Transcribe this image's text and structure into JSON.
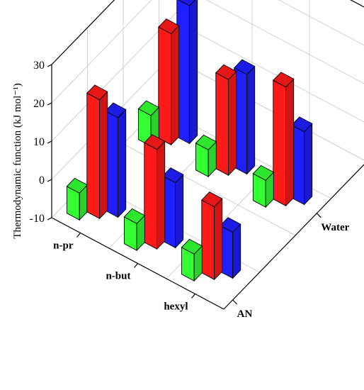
{
  "chart_data": {
    "type": "bar3d",
    "ylabel": "Thermodynamic function (kJ mol⁻¹)",
    "ylim": [
      -10,
      30
    ],
    "y_ticks": [
      -10,
      0,
      10,
      20,
      30
    ],
    "x_categories": [
      "n-pr",
      "n-but",
      "hexyl"
    ],
    "z_categories": [
      "AN",
      "Water"
    ],
    "grid": true,
    "series": [
      {
        "color": "#1f1fff",
        "values": {
          "AN": [
            16,
            7,
            2
          ],
          "Water": [
            26,
            16,
            9
          ]
        }
      },
      {
        "color": "#ff1a1a",
        "values": {
          "AN": [
            21,
            16,
            9
          ],
          "Water": [
            19,
            15,
            21
          ]
        }
      },
      {
        "color": "#33ff33",
        "values": {
          "AN": [
            -3,
            -3,
            -3
          ],
          "Water": [
            -2,
            -3,
            -3
          ]
        }
      }
    ]
  }
}
